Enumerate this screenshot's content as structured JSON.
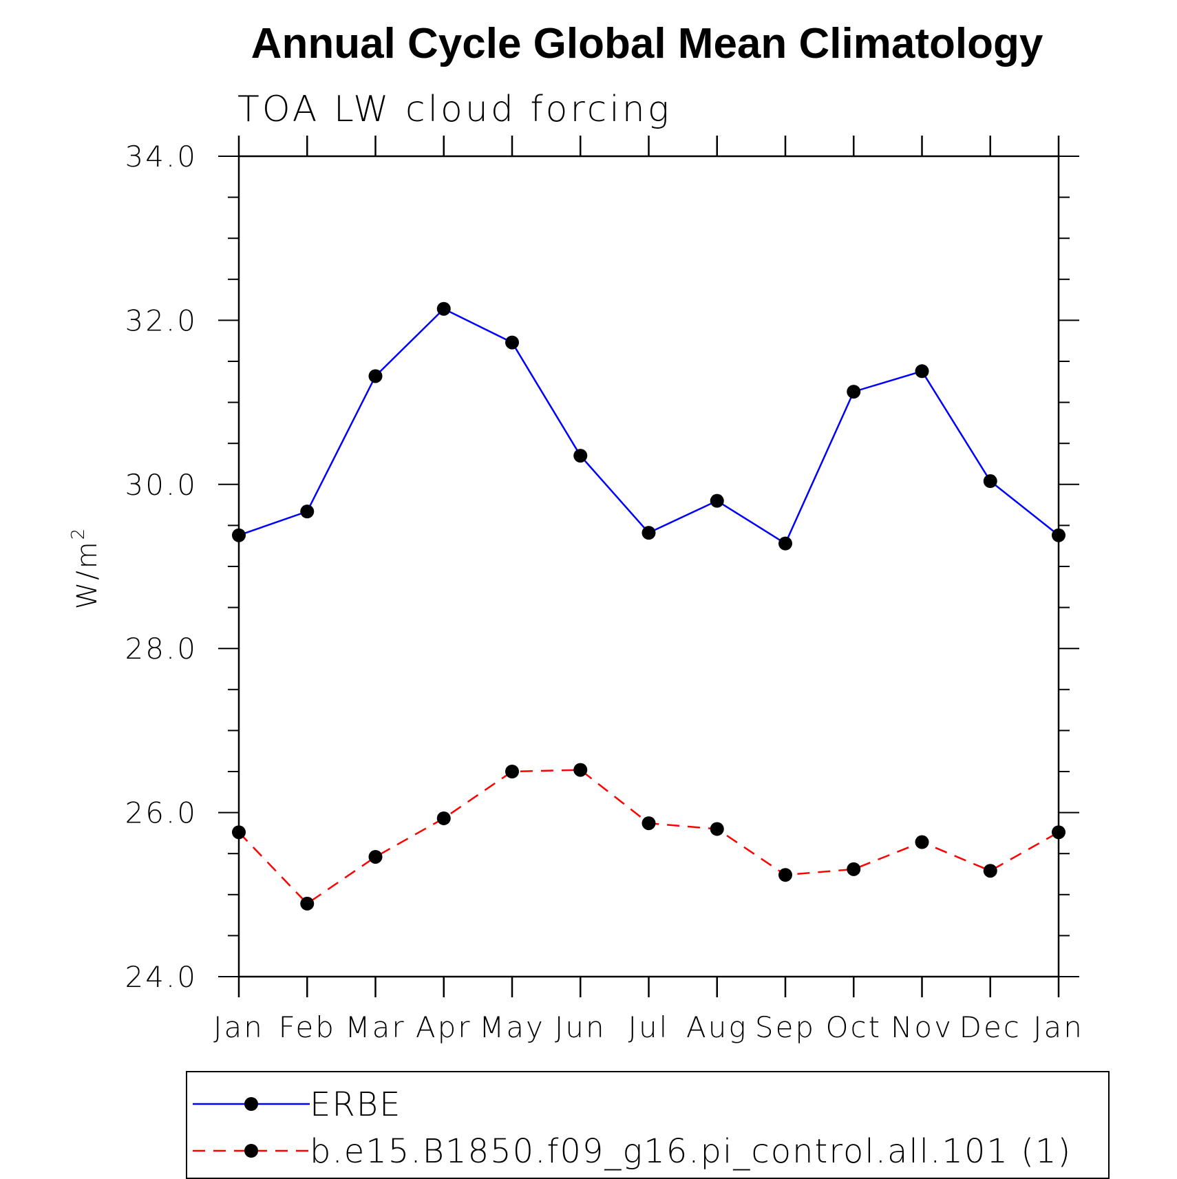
{
  "chart_data": {
    "type": "line",
    "title": "Annual Cycle Global Mean Climatology",
    "subtitle": "TOA LW cloud forcing",
    "ylabel": "W/m²",
    "ylabel_base": "W/m",
    "ylabel_sup": "2",
    "xlabel": "",
    "categories": [
      "Jan",
      "Feb",
      "Mar",
      "Apr",
      "May",
      "Jun",
      "Jul",
      "Aug",
      "Sep",
      "Oct",
      "Nov",
      "Dec",
      "Jan"
    ],
    "ylim": [
      24.0,
      34.0
    ],
    "yticks": [
      "24.0",
      "26.0",
      "28.0",
      "30.0",
      "32.0",
      "34.0"
    ],
    "grid": false,
    "legend_position": "bottom",
    "series": [
      {
        "name": "ERBE",
        "color": "#0000ff",
        "style": "solid",
        "marker": "filled-circle",
        "values": [
          29.38,
          29.67,
          31.32,
          32.14,
          31.73,
          30.35,
          29.41,
          29.8,
          29.28,
          31.13,
          31.38,
          30.04,
          29.38
        ]
      },
      {
        "name": "b.e15.B1850.f09_g16.pi_control.all.101 (1)",
        "color": "#ff0000",
        "style": "dashed",
        "marker": "filled-circle",
        "values": [
          25.76,
          24.89,
          25.46,
          25.93,
          26.5,
          26.52,
          25.87,
          25.8,
          25.24,
          25.31,
          25.64,
          25.29,
          25.76
        ]
      }
    ]
  }
}
